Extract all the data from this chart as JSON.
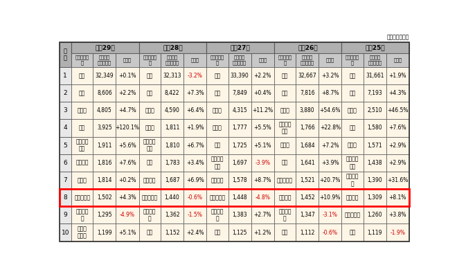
{
  "unit_label": "（単位：拠点）",
  "years": [
    "平成29年",
    "平成28年",
    "平成27年",
    "平成26年",
    "平成25年"
  ],
  "sub_headers": [
    "国（地域）\n名",
    "日系企業\n（拠点）数",
    "前年比"
  ],
  "rows": [
    {
      "rank": "1",
      "y29": {
        "country": "中国",
        "value": "32,349",
        "yoy": "+0.1%",
        "yoy_red": false
      },
      "y28": {
        "country": "中国",
        "value": "32,313",
        "yoy": "-3.2%",
        "yoy_red": true
      },
      "y27": {
        "country": "中国",
        "value": "33,390",
        "yoy": "+2.2%",
        "yoy_red": false
      },
      "y26": {
        "country": "中国",
        "value": "32,667",
        "yoy": "+3.2%",
        "yoy_red": false
      },
      "y25": {
        "country": "中国",
        "value": "31,661",
        "yoy": "+1.9%",
        "yoy_red": false
      }
    },
    {
      "rank": "2",
      "y29": {
        "country": "米国",
        "value": "8,606",
        "yoy": "+2.2%",
        "yoy_red": false
      },
      "y28": {
        "country": "米国",
        "value": "8,422",
        "yoy": "+7.3%",
        "yoy_red": false
      },
      "y27": {
        "country": "米国",
        "value": "7,849",
        "yoy": "+0.4%",
        "yoy_red": false
      },
      "y26": {
        "country": "米国",
        "value": "7,816",
        "yoy": "+8.7%",
        "yoy_red": false
      },
      "y25": {
        "country": "米国",
        "value": "7,193",
        "yoy": "+4.3%",
        "yoy_red": false
      }
    },
    {
      "rank": "3",
      "y29": {
        "country": "インド",
        "value": "4,805",
        "yoy": "+4.7%",
        "yoy_red": false
      },
      "y28": {
        "country": "インド",
        "value": "4,590",
        "yoy": "+6.4%",
        "yoy_red": false
      },
      "y27": {
        "country": "インド",
        "value": "4,315",
        "yoy": "+11.2%",
        "yoy_red": false
      },
      "y26": {
        "country": "インド",
        "value": "3,880",
        "yoy": "+54.6%",
        "yoy_red": false
      },
      "y25": {
        "country": "インド",
        "value": "2,510",
        "yoy": "+46.5%",
        "yoy_red": false
      }
    },
    {
      "rank": "4",
      "y29": {
        "country": "タイ",
        "value": "3,925",
        "yoy": "+120.1%",
        "yoy_red": false
      },
      "y28": {
        "country": "ドイツ",
        "value": "1,811",
        "yoy": "+1.9%",
        "yoy_red": false
      },
      "y27": {
        "country": "ドイツ",
        "value": "1,777",
        "yoy": "+5.5%",
        "yoy_red": false
      },
      "y26": {
        "country": "インドネ\nシア",
        "value": "1,766",
        "yoy": "+22.8%",
        "yoy_red": false
      },
      "y25": {
        "country": "タイ",
        "value": "1,580",
        "yoy": "+7.6%",
        "yoy_red": false
      }
    },
    {
      "rank": "5",
      "y29": {
        "country": "インドネ\nシア",
        "value": "1,911",
        "yoy": "+5.6%",
        "yoy_red": false
      },
      "y28": {
        "country": "インドネ\nシア",
        "value": "1,810",
        "yoy": "+6.7%",
        "yoy_red": false
      },
      "y27": {
        "country": "タイ",
        "value": "1,725",
        "yoy": "+5.1%",
        "yoy_red": false
      },
      "y26": {
        "country": "ドイツ",
        "value": "1,684",
        "yoy": "+7.2%",
        "yoy_red": false
      },
      "y25": {
        "country": "ドイツ",
        "value": "1,571",
        "yoy": "+2.9%",
        "yoy_red": false
      }
    },
    {
      "rank": "6",
      "y29": {
        "country": "ベトナム",
        "value": "1,816",
        "yoy": "+7.6%",
        "yoy_red": false
      },
      "y28": {
        "country": "タイ",
        "value": "1,783",
        "yoy": "+3.4%",
        "yoy_red": false
      },
      "y27": {
        "country": "インドネ\nシア",
        "value": "1,697",
        "yoy": "-3.9%",
        "yoy_red": true
      },
      "y26": {
        "country": "タイ",
        "value": "1,641",
        "yoy": "+3.9%",
        "yoy_red": false
      },
      "y25": {
        "country": "インドネ\nシア",
        "value": "1,438",
        "yoy": "+2.9%",
        "yoy_red": false
      }
    },
    {
      "rank": "7",
      "y29": {
        "country": "ドイツ",
        "value": "1,814",
        "yoy": "+0.2%",
        "yoy_red": false
      },
      "y28": {
        "country": "ベトナム",
        "value": "1,687",
        "yoy": "+6.9%",
        "yoy_red": false
      },
      "y27": {
        "country": "ベトナム",
        "value": "1,578",
        "yoy": "+8.7%",
        "yoy_red": false
      },
      "y26": {
        "country": "フィリピン",
        "value": "1,521",
        "yoy": "+20.7%",
        "yoy_red": false
      },
      "y25": {
        "country": "マレーシ\nア",
        "value": "1,390",
        "yoy": "+31.6%",
        "yoy_red": false
      }
    },
    {
      "rank": "8",
      "y29": {
        "country": "フィリピン",
        "value": "1,502",
        "yoy": "+4.3%",
        "yoy_red": false
      },
      "y28": {
        "country": "フィリピン",
        "value": "1,440",
        "yoy": "-0.6%",
        "yoy_red": true
      },
      "y27": {
        "country": "フィリピン",
        "value": "1,448",
        "yoy": "-4.8%",
        "yoy_red": true
      },
      "y26": {
        "country": "ベトナム",
        "value": "1,452",
        "yoy": "+10.9%",
        "yoy_red": false
      },
      "y25": {
        "country": "ベトナム",
        "value": "1,309",
        "yoy": "+8.1%",
        "yoy_red": false
      },
      "highlight": true
    },
    {
      "rank": "9",
      "y29": {
        "country": "マレーシ\nア",
        "value": "1,295",
        "yoy": "-4.9%",
        "yoy_red": true
      },
      "y28": {
        "country": "マレーシ\nア",
        "value": "1,362",
        "yoy": "-1.5%",
        "yoy_red": true
      },
      "y27": {
        "country": "マレーシ\nア",
        "value": "1,383",
        "yoy": "+2.7%",
        "yoy_red": false
      },
      "y26": {
        "country": "マレーシ\nア",
        "value": "1,347",
        "yoy": "-3.1%",
        "yoy_red": true
      },
      "y25": {
        "country": "フィリピン",
        "value": "1,260",
        "yoy": "+3.8%",
        "yoy_red": false
      }
    },
    {
      "rank": "10",
      "y29": {
        "country": "シンガ\nポール",
        "value": "1,199",
        "yoy": "+5.1%",
        "yoy_red": false
      },
      "y28": {
        "country": "台湾",
        "value": "1,152",
        "yoy": "+2.4%",
        "yoy_red": false
      },
      "y27": {
        "country": "台湾",
        "value": "1,125",
        "yoy": "+1.2%",
        "yoy_red": false
      },
      "y26": {
        "country": "台湾",
        "value": "1,112",
        "yoy": "-0.6%",
        "yoy_red": true
      },
      "y25": {
        "country": "台湾",
        "value": "1,119",
        "yoy": "-1.9%",
        "yoy_red": true
      }
    }
  ],
  "header_bg": "#c8c8c8",
  "year_header_bg": "#b0b0b0",
  "data_row_bg": "#fdf5e6",
  "text_color_normal": "#000000",
  "text_color_red": "#cc0000",
  "border_color": "#555555",
  "rank_bg": "#e8e8e8"
}
